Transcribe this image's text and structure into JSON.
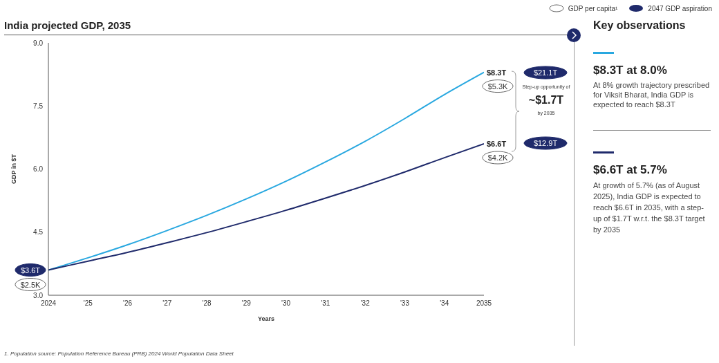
{
  "chart_data": {
    "type": "line",
    "title": "India projected GDP, 2035",
    "xlabel": "Years",
    "ylabel": "GDP in $T",
    "x": [
      2024,
      2025,
      2026,
      2027,
      2028,
      2029,
      2030,
      2031,
      2032,
      2033,
      2034,
      2035
    ],
    "series": [
      {
        "color": "#29a8e0",
        "values": [
          3.6,
          3.89,
          4.2,
          4.54,
          4.9,
          5.29,
          5.71,
          6.17,
          6.66,
          7.2,
          7.77,
          8.3
        ]
      },
      {
        "color": "#1f2a6b",
        "values": [
          3.6,
          3.81,
          4.02,
          4.25,
          4.49,
          4.75,
          5.02,
          5.31,
          5.61,
          5.93,
          6.27,
          6.6
        ]
      }
    ],
    "xlim": [
      2024,
      2035
    ],
    "xticks": [
      2024,
      {
        "value": 2025,
        "label": "'25"
      },
      {
        "value": 2026,
        "label": "'26"
      },
      {
        "value": 2027,
        "label": "'27"
      },
      {
        "value": 2028,
        "label": "'28"
      },
      {
        "value": 2029,
        "label": "'29"
      },
      {
        "value": 2030,
        "label": "'30"
      },
      {
        "value": 2031,
        "label": "'31"
      },
      {
        "value": 2032,
        "label": "'32"
      },
      {
        "value": 2033,
        "label": "'33"
      },
      {
        "value": 2034,
        "label": "'34"
      },
      2035
    ],
    "ylim": [
      3,
      9
    ],
    "yticks": [
      {
        "value": 3,
        "label": "3.0"
      },
      4.5,
      {
        "value": 6,
        "label": "6.0"
      },
      7.5,
      {
        "value": 9,
        "label": "9.0"
      }
    ],
    "line_style": "solid",
    "annotations": [
      "GDP per capita¹",
      "2047 GDP aspiration",
      "$3.6T",
      "$2.5K",
      "$8.3T",
      "$5.3K",
      "$6.6T",
      "$4.2K",
      "$21.1T",
      "$12.9T",
      "Step-up opportunity of",
      "~$1.7T",
      "by 2035",
      "Key observations",
      "$8.3T at 8.0%",
      "At 8% growth trajectory prescribed for Viksit Bharat, India GDP is expected to reach $8.3T",
      "$6.6T at 5.7%",
      "At growth of 5.7% (as of August 2025), India GDP is expected to reach $6.6T in 2035, with a step-up of $1.7T w.r.t. the $8.3T target by 2035",
      "1. Population source: Population Reference Bureau (PRB) 2024 World Population Data Sheet"
    ]
  }
}
